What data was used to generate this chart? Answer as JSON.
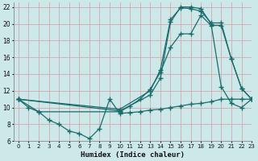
{
  "xlabel": "Humidex (Indice chaleur)",
  "xlim": [
    -0.5,
    23
  ],
  "ylim": [
    6,
    22.5
  ],
  "xticks": [
    0,
    1,
    2,
    3,
    4,
    5,
    6,
    7,
    8,
    9,
    10,
    11,
    12,
    13,
    14,
    15,
    16,
    17,
    18,
    19,
    20,
    21,
    22,
    23
  ],
  "yticks": [
    6,
    8,
    10,
    12,
    14,
    16,
    18,
    20,
    22
  ],
  "bg_color": "#cde8e8",
  "grid_color": "#d4a8b0",
  "line_color": "#1a6b6b",
  "line1_x": [
    0,
    1,
    2,
    3,
    4,
    5,
    6,
    7,
    8,
    9,
    10,
    11,
    12,
    13,
    14,
    15,
    16,
    17,
    18,
    19,
    20,
    21,
    22,
    23
  ],
  "line1_y": [
    11,
    10,
    9.5,
    8.5,
    8.0,
    7.2,
    6.9,
    6.3,
    7.5,
    11,
    9.3,
    9.4,
    9.5,
    9.7,
    9.8,
    10.0,
    10.2,
    10.4,
    10.5,
    10.7,
    11.0,
    11.0,
    11.0,
    11.0
  ],
  "line2_x": [
    0,
    2,
    10,
    11,
    12,
    13,
    14,
    15,
    16,
    17,
    18,
    19,
    20,
    21,
    22,
    23
  ],
  "line2_y": [
    11,
    9.5,
    9.5,
    10.2,
    11.0,
    12.2,
    14.2,
    17.2,
    18.8,
    18.8,
    21.0,
    19.8,
    19.8,
    15.8,
    12.3,
    11.0
  ],
  "line3_x": [
    0,
    10,
    13,
    14,
    15,
    16,
    17,
    18,
    19,
    20,
    21,
    22,
    23
  ],
  "line3_y": [
    11,
    9.8,
    12.0,
    14.5,
    20.5,
    21.9,
    21.8,
    21.5,
    20.1,
    20.1,
    15.8,
    12.3,
    11.0
  ],
  "line4_x": [
    0,
    10,
    13,
    14,
    15,
    16,
    17,
    18,
    19,
    20,
    21,
    22,
    23
  ],
  "line4_y": [
    11,
    9.6,
    11.5,
    13.5,
    20.2,
    22.0,
    22.0,
    21.8,
    20.0,
    12.5,
    10.5,
    10.0,
    11.0
  ]
}
